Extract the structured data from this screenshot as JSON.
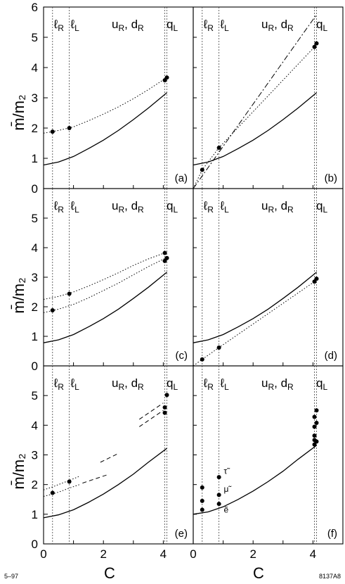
{
  "figure": {
    "ylabel": "m̄/m₂",
    "xlabel": "C",
    "corner_left": "5–97",
    "corner_right": "8137A8",
    "xlim": [
      0,
      5
    ],
    "xticks": [
      0,
      2,
      4
    ],
    "colors": {
      "ink": "#000000",
      "guide": "#444444"
    }
  },
  "chart_data": [
    {
      "type": "line",
      "tag": "(a)",
      "ylim": [
        0,
        6
      ],
      "yticks": [
        0,
        1,
        2,
        3,
        4,
        5,
        6
      ],
      "regions": [
        {
          "text": "ℓ",
          "sub": "R",
          "x": 0.3
        },
        {
          "text": "ℓ",
          "sub": "L",
          "x": 0.86
        },
        {
          "text": "u",
          "sub": "R",
          "x": 4.05
        },
        {
          "text": "q",
          "sub": "L",
          "x": 4.12
        }
      ],
      "region_extra": "uR, dR",
      "series": [
        {
          "style": "solid",
          "x": [
            0,
            0.5,
            1,
            1.5,
            2,
            2.5,
            3,
            3.5,
            4.12
          ],
          "y": [
            0.78,
            0.88,
            1.06,
            1.32,
            1.6,
            1.92,
            2.28,
            2.66,
            3.17
          ]
        },
        {
          "style": "dotted",
          "x": [
            0,
            0.5,
            1,
            1.5,
            2,
            2.5,
            3,
            3.5,
            4.12
          ],
          "y": [
            1.83,
            1.92,
            2.04,
            2.24,
            2.46,
            2.7,
            2.97,
            3.27,
            3.67
          ]
        }
      ],
      "points": [
        {
          "x": 0.3,
          "y": 1.88
        },
        {
          "x": 0.86,
          "y": 2.0
        },
        {
          "x": 4.05,
          "y": 3.58
        },
        {
          "x": 4.12,
          "y": 3.67
        }
      ]
    },
    {
      "type": "line",
      "tag": "(b)",
      "ylim": [
        0,
        6
      ],
      "yticks": [],
      "regions": [
        {
          "text": "ℓ",
          "sub": "R",
          "x": 0.3
        },
        {
          "text": "ℓ",
          "sub": "L",
          "x": 0.86
        },
        {
          "text": "u",
          "sub": "R",
          "x": 4.05
        },
        {
          "text": "q",
          "sub": "L",
          "x": 4.12
        }
      ],
      "region_extra": "uR, dR",
      "series": [
        {
          "style": "solid",
          "x": [
            0,
            0.5,
            1,
            1.5,
            2,
            2.5,
            3,
            3.5,
            4.12
          ],
          "y": [
            0.78,
            0.88,
            1.06,
            1.32,
            1.6,
            1.92,
            2.28,
            2.66,
            3.17
          ]
        },
        {
          "style": "dotted",
          "x": [
            0,
            0.3,
            0.86,
            4.05,
            4.12
          ],
          "y": [
            0.0,
            0.62,
            1.35,
            4.68,
            4.78
          ]
        },
        {
          "style": "dashdot",
          "x": [
            0,
            4.12
          ],
          "y": [
            0.0,
            5.75
          ]
        }
      ],
      "points": [
        {
          "x": 0.3,
          "y": 0.62
        },
        {
          "x": 0.86,
          "y": 1.35
        },
        {
          "x": 4.05,
          "y": 4.68
        },
        {
          "x": 4.12,
          "y": 4.8
        }
      ]
    },
    {
      "type": "line",
      "tag": "(c)",
      "ylim": [
        0,
        6
      ],
      "yticks": [
        0,
        1,
        2,
        3,
        4,
        5
      ],
      "regions": [
        {
          "text": "ℓ",
          "sub": "R",
          "x": 0.3
        },
        {
          "text": "ℓ",
          "sub": "L",
          "x": 0.86
        },
        {
          "text": "u",
          "sub": "R",
          "x": 4.05
        },
        {
          "text": "q",
          "sub": "L",
          "x": 4.12
        }
      ],
      "region_extra": "uR, dR",
      "series": [
        {
          "style": "solid",
          "x": [
            0,
            0.5,
            1,
            1.5,
            2,
            2.5,
            3,
            3.5,
            4.12
          ],
          "y": [
            0.78,
            0.88,
            1.06,
            1.32,
            1.6,
            1.92,
            2.28,
            2.66,
            3.17
          ]
        },
        {
          "style": "dotted",
          "x": [
            0,
            0.5,
            1,
            1.5,
            2,
            2.5,
            3,
            3.5,
            4.12
          ],
          "y": [
            1.8,
            1.92,
            2.08,
            2.3,
            2.55,
            2.8,
            3.08,
            3.36,
            3.67
          ]
        },
        {
          "style": "dotted",
          "x": [
            0,
            0.5,
            1,
            1.5,
            2,
            2.5,
            3,
            3.5,
            4.12
          ],
          "y": [
            2.25,
            2.35,
            2.5,
            2.7,
            2.92,
            3.15,
            3.4,
            3.62,
            3.85
          ]
        }
      ],
      "points": [
        {
          "x": 0.3,
          "y": 1.88
        },
        {
          "x": 0.86,
          "y": 2.44
        },
        {
          "x": 4.05,
          "y": 3.82
        },
        {
          "x": 4.05,
          "y": 3.55
        },
        {
          "x": 4.12,
          "y": 3.65
        }
      ]
    },
    {
      "type": "line",
      "tag": "(d)",
      "ylim": [
        0,
        6
      ],
      "yticks": [],
      "regions": [
        {
          "text": "ℓ",
          "sub": "R",
          "x": 0.3
        },
        {
          "text": "ℓ",
          "sub": "L",
          "x": 0.86
        },
        {
          "text": "u",
          "sub": "R",
          "x": 4.05
        },
        {
          "text": "q",
          "sub": "L",
          "x": 4.12
        }
      ],
      "region_extra": "uR, dR",
      "series": [
        {
          "style": "solid",
          "x": [
            0,
            0.5,
            1,
            1.5,
            2,
            2.5,
            3,
            3.5,
            4.12
          ],
          "y": [
            0.78,
            0.88,
            1.06,
            1.32,
            1.6,
            1.92,
            2.28,
            2.66,
            3.17
          ]
        },
        {
          "style": "dotted",
          "x": [
            0,
            0.3,
            0.86,
            4.05,
            4.12
          ],
          "y": [
            0.0,
            0.22,
            0.62,
            2.85,
            2.95
          ]
        }
      ],
      "points": [
        {
          "x": 0.3,
          "y": 0.22
        },
        {
          "x": 0.86,
          "y": 0.62
        },
        {
          "x": 4.05,
          "y": 2.85
        },
        {
          "x": 4.12,
          "y": 2.95
        }
      ]
    },
    {
      "type": "line",
      "tag": "(e)",
      "ylim": [
        0,
        6
      ],
      "yticks": [
        0,
        1,
        2,
        3,
        4,
        5
      ],
      "regions": [
        {
          "text": "ℓ",
          "sub": "R",
          "x": 0.3
        },
        {
          "text": "ℓ",
          "sub": "L",
          "x": 0.86
        },
        {
          "text": "u",
          "sub": "R",
          "x": 4.05
        },
        {
          "text": "q",
          "sub": "L",
          "x": 4.12
        }
      ],
      "region_extra": "uR, dR",
      "series": [
        {
          "style": "solid",
          "x": [
            0,
            0.5,
            1,
            1.5,
            2,
            2.5,
            3,
            3.5,
            4.12
          ],
          "y": [
            0.88,
            0.98,
            1.15,
            1.4,
            1.68,
            2.0,
            2.35,
            2.75,
            3.22
          ]
        },
        {
          "style": "dotted",
          "x": [
            0,
            0.3,
            0.6,
            0.86,
            1.2
          ],
          "y": [
            1.6,
            1.68,
            1.78,
            1.88,
            2.0
          ]
        },
        {
          "style": "dotted",
          "x": [
            0,
            0.3,
            0.6,
            0.86,
            1.2
          ],
          "y": [
            1.82,
            1.92,
            2.04,
            2.14,
            2.28
          ]
        },
        {
          "style": "dashed",
          "x": [
            1.3,
            2.1
          ],
          "y": [
            2.05,
            2.32
          ]
        },
        {
          "style": "dashed",
          "x": [
            1.9,
            2.5
          ],
          "y": [
            2.75,
            3.05
          ]
        },
        {
          "style": "dashed",
          "x": [
            3.2,
            4.0
          ],
          "y": [
            3.95,
            4.5
          ]
        },
        {
          "style": "dashed",
          "x": [
            3.2,
            4.0
          ],
          "y": [
            4.2,
            4.75
          ]
        }
      ],
      "points": [
        {
          "x": 0.3,
          "y": 1.72
        },
        {
          "x": 0.86,
          "y": 2.1
        },
        {
          "x": 4.05,
          "y": 4.6
        },
        {
          "x": 4.05,
          "y": 4.42
        },
        {
          "x": 4.12,
          "y": 5.02
        }
      ]
    },
    {
      "type": "scatter",
      "tag": "(f)",
      "ylim": [
        0,
        6
      ],
      "yticks": [],
      "regions": [
        {
          "text": "ℓ",
          "sub": "R",
          "x": 0.3
        },
        {
          "text": "ℓ",
          "sub": "L",
          "x": 0.86
        },
        {
          "text": "u",
          "sub": "R",
          "x": 4.05
        },
        {
          "text": "q",
          "sub": "L",
          "x": 4.12
        }
      ],
      "region_extra": "uR, dR",
      "series": [
        {
          "style": "solid",
          "x": [
            0,
            0.5,
            1,
            1.5,
            2,
            2.5,
            3,
            3.5,
            4.12
          ],
          "y": [
            1.0,
            1.08,
            1.25,
            1.5,
            1.78,
            2.1,
            2.45,
            2.85,
            3.32
          ]
        }
      ],
      "points": [
        {
          "x": 0.3,
          "y": 1.15
        },
        {
          "x": 0.3,
          "y": 1.45
        },
        {
          "x": 0.3,
          "y": 1.9
        },
        {
          "x": 0.86,
          "y": 1.35
        },
        {
          "x": 0.86,
          "y": 1.65
        },
        {
          "x": 0.86,
          "y": 2.25
        },
        {
          "x": 4.05,
          "y": 3.35
        },
        {
          "x": 4.05,
          "y": 3.5
        },
        {
          "x": 4.05,
          "y": 3.65
        },
        {
          "x": 4.05,
          "y": 3.95
        },
        {
          "x": 4.05,
          "y": 4.28
        },
        {
          "x": 4.12,
          "y": 4.08
        },
        {
          "x": 4.12,
          "y": 4.5
        },
        {
          "x": 4.12,
          "y": 3.45
        }
      ],
      "point_labels": [
        {
          "text": "τ̃",
          "x": 0.95,
          "y": 2.45
        },
        {
          "text": "μ̃",
          "x": 0.95,
          "y": 1.85
        },
        {
          "text": "ẽ",
          "x": 0.95,
          "y": 1.15
        }
      ]
    }
  ]
}
